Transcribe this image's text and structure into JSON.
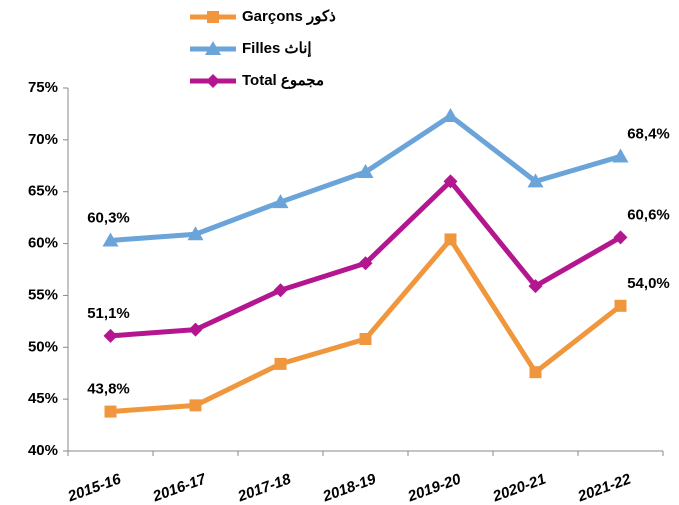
{
  "chart_data": {
    "type": "line",
    "categories": [
      "2015-16",
      "2016-17",
      "2017-18",
      "2018-19",
      "2019-20",
      "2020-21",
      "2021-22"
    ],
    "series": [
      {
        "name": "Garçons  ذكور",
        "color": "#f0963c",
        "marker": "square",
        "values": [
          43.8,
          44.4,
          48.4,
          50.8,
          60.4,
          47.6,
          54.0
        ],
        "value_labels": [
          "43,8%",
          null,
          null,
          null,
          null,
          null,
          "54,0%"
        ]
      },
      {
        "name": "Filles  إناث",
        "color": "#6aa4d8",
        "marker": "triangle",
        "values": [
          60.3,
          60.9,
          64.0,
          66.9,
          72.3,
          66.0,
          68.4
        ],
        "value_labels": [
          "60,3%",
          null,
          null,
          null,
          null,
          null,
          "68,4%"
        ]
      },
      {
        "name": "Total  مجموع",
        "color": "#b3168f",
        "marker": "diamond",
        "values": [
          51.1,
          51.7,
          55.5,
          58.1,
          66.0,
          55.9,
          60.6
        ],
        "value_labels": [
          "51,1%",
          null,
          null,
          null,
          null,
          null,
          "60,6%"
        ]
      }
    ],
    "ylim": [
      40,
      75
    ],
    "yticks": [
      {
        "value": 40,
        "label": "40%"
      },
      {
        "value": 45,
        "label": "45%"
      },
      {
        "value": 50,
        "label": "50%"
      },
      {
        "value": 55,
        "label": "55%"
      },
      {
        "value": 60,
        "label": "60%"
      },
      {
        "value": 65,
        "label": "65%"
      },
      {
        "value": 70,
        "label": "70%"
      },
      {
        "value": 75,
        "label": "75%"
      }
    ],
    "grid": false,
    "legend": "top"
  }
}
